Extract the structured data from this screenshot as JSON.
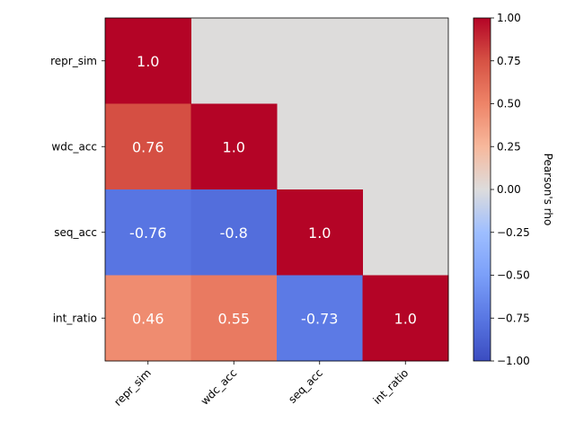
{
  "chart_data": {
    "type": "heatmap",
    "title": "",
    "row_labels": [
      "repr_sim",
      "wdc_acc",
      "seq_acc",
      "int_ratio"
    ],
    "col_labels": [
      "repr_sim",
      "wdc_acc",
      "seq_acc",
      "int_ratio"
    ],
    "cells": [
      {
        "row": 0,
        "col": 0,
        "value": 1.0,
        "label": "1.0"
      },
      {
        "row": 1,
        "col": 0,
        "value": 0.76,
        "label": "0.76"
      },
      {
        "row": 1,
        "col": 1,
        "value": 1.0,
        "label": "1.0"
      },
      {
        "row": 2,
        "col": 0,
        "value": -0.76,
        "label": "-0.76"
      },
      {
        "row": 2,
        "col": 1,
        "value": -0.8,
        "label": "-0.8"
      },
      {
        "row": 2,
        "col": 2,
        "value": 1.0,
        "label": "1.0"
      },
      {
        "row": 3,
        "col": 0,
        "value": 0.46,
        "label": "0.46"
      },
      {
        "row": 3,
        "col": 1,
        "value": 0.55,
        "label": "0.55"
      },
      {
        "row": 3,
        "col": 2,
        "value": -0.73,
        "label": "-0.73"
      },
      {
        "row": 3,
        "col": 3,
        "value": 1.0,
        "label": "1.0"
      }
    ],
    "masked_color": "#dddcdb",
    "colormap": "coolwarm",
    "vmin": -1.0,
    "vmax": 1.0,
    "colorbar": {
      "label": "Pearson's rho",
      "ticks": [
        1.0,
        0.75,
        0.5,
        0.25,
        0.0,
        -0.25,
        -0.5,
        -0.75,
        -1.0
      ],
      "tick_labels": [
        "1.00",
        "0.75",
        "0.50",
        "0.25",
        "0.00",
        "−0.25",
        "−0.50",
        "−0.75",
        "−1.00"
      ]
    }
  }
}
